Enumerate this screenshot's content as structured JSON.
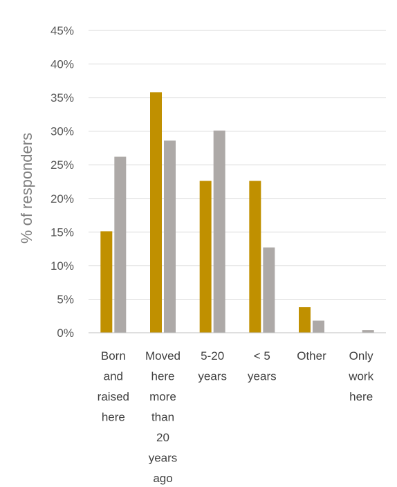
{
  "chart_data": {
    "type": "bar",
    "title": "",
    "xlabel": "",
    "ylabel": "% of responders",
    "ylim": [
      0,
      45
    ],
    "y_ticks": [
      0,
      5,
      10,
      15,
      20,
      25,
      30,
      35,
      40,
      45
    ],
    "y_tick_labels": [
      "0%",
      "5%",
      "10%",
      "15%",
      "20%",
      "25%",
      "30%",
      "35%",
      "40%",
      "45%"
    ],
    "grid": true,
    "legend": "none",
    "categories": [
      [
        "Born",
        "and",
        "raised",
        "here"
      ],
      [
        "Moved",
        "here",
        "more",
        "than",
        "20",
        "years",
        "ago"
      ],
      [
        "5-20",
        "years"
      ],
      [
        "< 5",
        "years"
      ],
      [
        "Other"
      ],
      [
        "Only",
        "work",
        "here"
      ]
    ],
    "series": [
      {
        "color": "#C09000",
        "values": [
          15.1,
          35.8,
          22.6,
          22.6,
          3.8,
          0
        ]
      },
      {
        "color": "#ADA9A7",
        "values": [
          26.2,
          28.6,
          30.1,
          12.7,
          1.8,
          0.4
        ]
      }
    ]
  }
}
